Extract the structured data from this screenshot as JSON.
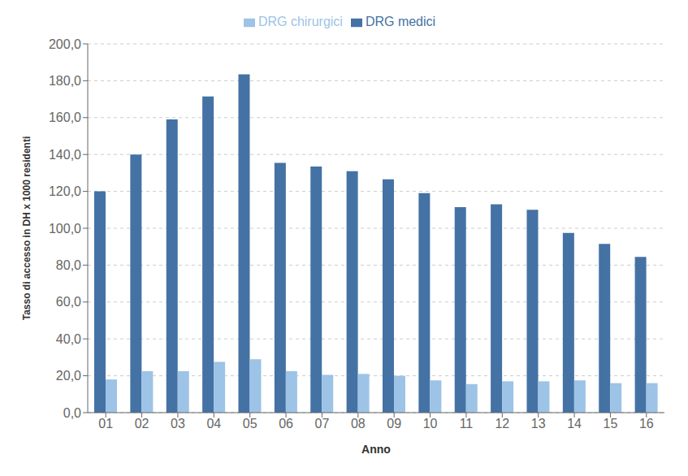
{
  "chart_data": {
    "type": "bar",
    "categories": [
      "01",
      "02",
      "03",
      "04",
      "05",
      "06",
      "07",
      "08",
      "09",
      "10",
      "11",
      "12",
      "13",
      "14",
      "15",
      "16"
    ],
    "series": [
      {
        "name": "DRG medici",
        "color": "#4472a4",
        "values": [
          120.0,
          140.0,
          159.0,
          171.5,
          183.5,
          135.5,
          133.5,
          131.0,
          126.5,
          119.0,
          111.5,
          113.0,
          110.0,
          97.5,
          91.5,
          84.5
        ]
      },
      {
        "name": "DRG chirurgici",
        "color": "#9dc3e6",
        "values": [
          18.0,
          22.5,
          22.5,
          27.5,
          29.0,
          22.5,
          20.5,
          21.0,
          20.0,
          17.5,
          15.5,
          17.0,
          17.0,
          17.5,
          16.0,
          16.0
        ]
      }
    ],
    "xlabel": "Anno",
    "ylabel": "Tasso di accesso in DH x 1000 residenti",
    "ylim": [
      0,
      200
    ],
    "yticks": [
      {
        "value": 0,
        "label": "0,0"
      },
      {
        "value": 20,
        "label": "20,0"
      },
      {
        "value": 40,
        "label": "40,0"
      },
      {
        "value": 60,
        "label": "60,0"
      },
      {
        "value": 80,
        "label": "80,0"
      },
      {
        "value": 100,
        "label": "100,0"
      },
      {
        "value": 120,
        "label": "120,0"
      },
      {
        "value": 140,
        "label": "140,0"
      },
      {
        "value": 160,
        "label": "160,0"
      },
      {
        "value": 180,
        "label": "180,0"
      },
      {
        "value": 200,
        "label": "200,0"
      }
    ],
    "grid": true,
    "legend": "top"
  }
}
